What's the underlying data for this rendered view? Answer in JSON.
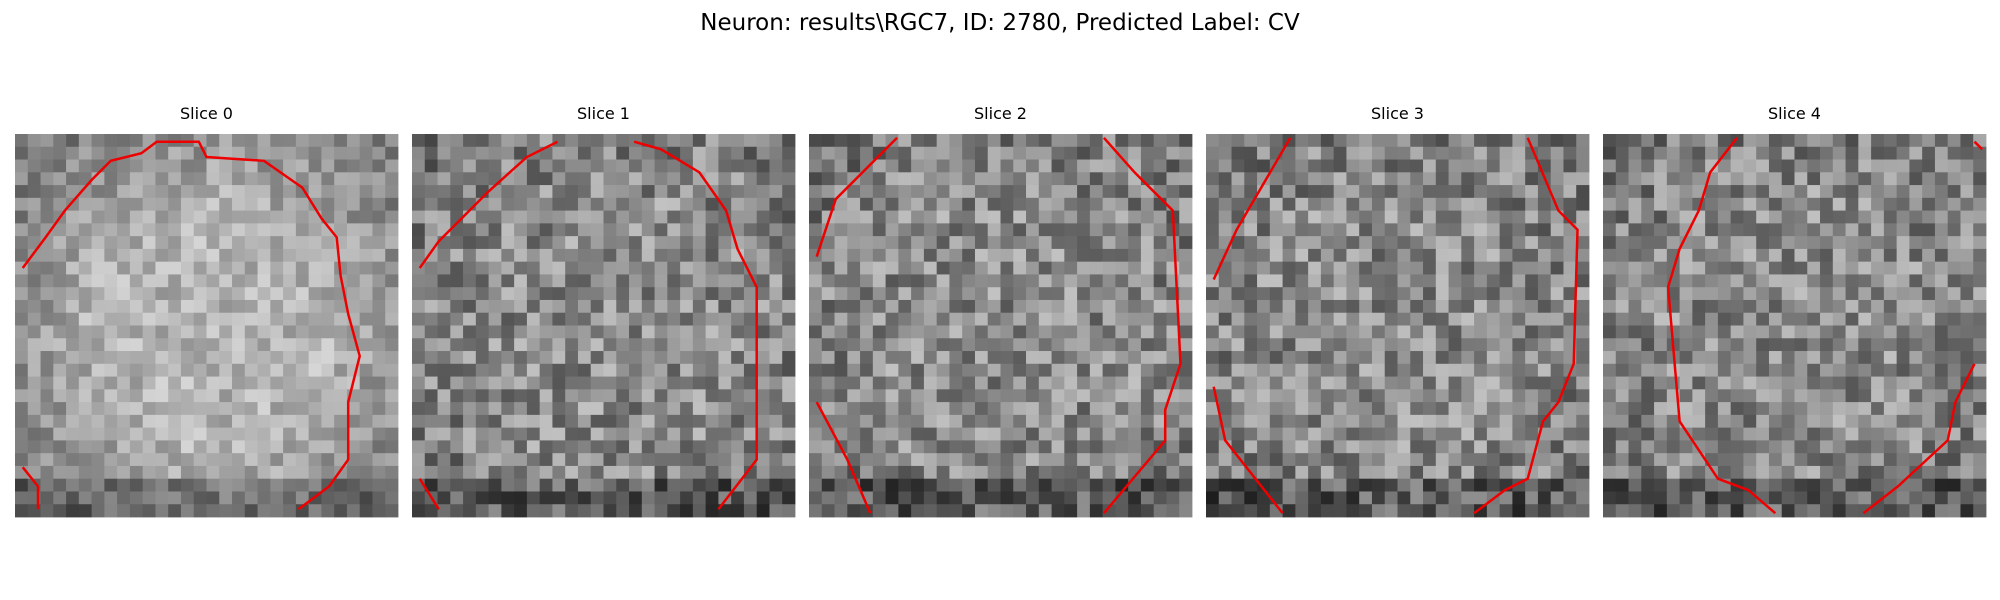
{
  "title": "Neuron: results\\RGC7, ID: 2780, Predicted Label: CV",
  "panels": [
    {
      "title": "Slice 0"
    },
    {
      "title": "Slice 1"
    },
    {
      "title": "Slice 2"
    },
    {
      "title": "Slice 3"
    },
    {
      "title": "Slice 4"
    }
  ]
}
